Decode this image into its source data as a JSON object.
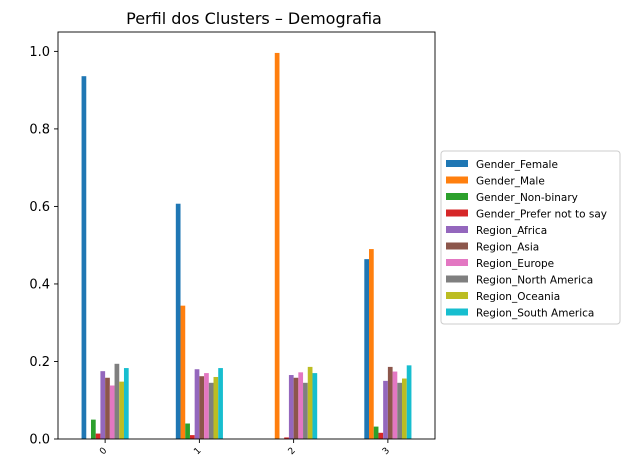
{
  "chart_data": {
    "type": "bar",
    "title": "Perfil dos Clusters – Demografia",
    "xlabel": "",
    "ylabel": "",
    "categories": [
      "0",
      "1",
      "2",
      "3"
    ],
    "ylim": [
      0,
      1.05
    ],
    "yticks": [
      "0.0",
      "0.2",
      "0.4",
      "0.6",
      "0.8",
      "1.0"
    ],
    "grid": false,
    "legend_position": "right",
    "series": [
      {
        "name": "Gender_Female",
        "color": "#1f77b4",
        "values": [
          0.936,
          0.607,
          0.0,
          0.464
        ]
      },
      {
        "name": "Gender_Male",
        "color": "#ff7f0e",
        "values": [
          0.0,
          0.344,
          0.996,
          0.49
        ]
      },
      {
        "name": "Gender_Non-binary",
        "color": "#2ca02c",
        "values": [
          0.05,
          0.04,
          0.0,
          0.032
        ]
      },
      {
        "name": "Gender_Prefer not to say",
        "color": "#d62728",
        "values": [
          0.014,
          0.01,
          0.004,
          0.016
        ]
      },
      {
        "name": "Region_Africa",
        "color": "#9467bd",
        "values": [
          0.175,
          0.18,
          0.165,
          0.15
        ]
      },
      {
        "name": "Region_Asia",
        "color": "#8c564b",
        "values": [
          0.158,
          0.162,
          0.158,
          0.186
        ]
      },
      {
        "name": "Region_Europe",
        "color": "#e377c2",
        "values": [
          0.138,
          0.17,
          0.172,
          0.174
        ]
      },
      {
        "name": "Region_North America",
        "color": "#7f7f7f",
        "values": [
          0.194,
          0.145,
          0.145,
          0.145
        ]
      },
      {
        "name": "Region_Oceania",
        "color": "#bcbd22",
        "values": [
          0.148,
          0.16,
          0.186,
          0.156
        ]
      },
      {
        "name": "Region_South America",
        "color": "#17becf",
        "values": [
          0.183,
          0.183,
          0.17,
          0.19
        ]
      }
    ]
  }
}
